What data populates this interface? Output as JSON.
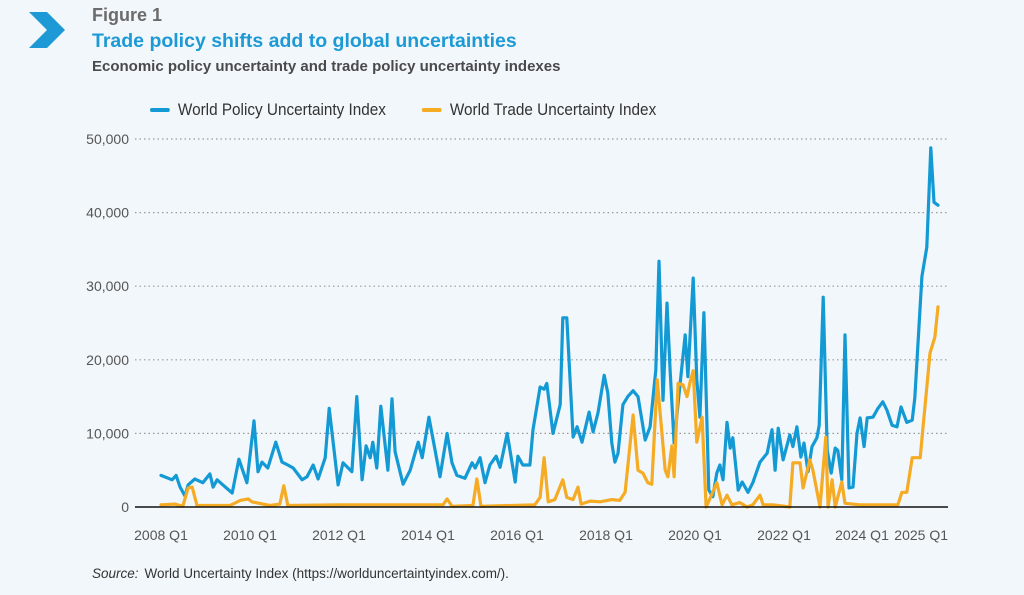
{
  "header": {
    "figure_label": "Figure 1",
    "title": "Trade policy shifts add to global uncertainties",
    "subtitle": "Economic policy uncertainty and trade policy uncertainty indexes",
    "logo_icon": "chevron-right-icon"
  },
  "source": {
    "label": "Source:",
    "text": "World Uncertainty Index (https://worlduncertaintyindex.com/)."
  },
  "colors": {
    "accent": "#1d9ad6",
    "policy": "#139ad4",
    "trade": "#f5ab23",
    "axis": "#111111",
    "grid": "#9a9a9a"
  },
  "chart_data": {
    "type": "line",
    "title": "Trade policy shifts add to global uncertainties",
    "subtitle": "Economic policy uncertainty and trade policy uncertainty indexes",
    "xlabel": "",
    "ylabel": "",
    "x_unit": "year",
    "xlim": [
      2008.0,
      2025.5
    ],
    "ylim": [
      0,
      50000
    ],
    "grid": "horizontal-dotted",
    "legend_position": "top",
    "x_ticks": [
      {
        "x": 2008.0,
        "label": "2008 Q1"
      },
      {
        "x": 2010.0,
        "label": "2010 Q1"
      },
      {
        "x": 2012.0,
        "label": "2012 Q1"
      },
      {
        "x": 2014.0,
        "label": "2014 Q1"
      },
      {
        "x": 2016.0,
        "label": "2016 Q1"
      },
      {
        "x": 2018.0,
        "label": "2018 Q1"
      },
      {
        "x": 2020.0,
        "label": "2020 Q1"
      },
      {
        "x": 2022.0,
        "label": "2022 Q1"
      },
      {
        "x": 2024.0,
        "label": "2024 Q1"
      },
      {
        "x": 2025.0,
        "label": "2025 Q1"
      }
    ],
    "y_ticks": [
      {
        "y": 0,
        "label": "0"
      },
      {
        "y": 10000,
        "label": "10,000"
      },
      {
        "y": 20000,
        "label": "20,000"
      },
      {
        "y": 30000,
        "label": "30,000"
      },
      {
        "y": 40000,
        "label": "40,000"
      },
      {
        "y": 50000,
        "label": "50,000"
      }
    ],
    "series": [
      {
        "name": "World Policy Uncertainty Index",
        "color": "#139ad4",
        "points": [
          [
            2008.0,
            4300
          ],
          [
            2008.25,
            3700
          ],
          [
            2008.34,
            4300
          ],
          [
            2008.43,
            2700
          ],
          [
            2008.54,
            1500
          ],
          [
            2008.61,
            3000
          ],
          [
            2008.76,
            3800
          ],
          [
            2008.94,
            3300
          ],
          [
            2009.1,
            4500
          ],
          [
            2009.17,
            2700
          ],
          [
            2009.26,
            3700
          ],
          [
            2009.39,
            3000
          ],
          [
            2009.6,
            1900
          ],
          [
            2009.75,
            6500
          ],
          [
            2009.93,
            3300
          ],
          [
            2010.09,
            11700
          ],
          [
            2010.18,
            4800
          ],
          [
            2010.27,
            6100
          ],
          [
            2010.4,
            5300
          ],
          [
            2010.58,
            8800
          ],
          [
            2010.72,
            6100
          ],
          [
            2010.85,
            5700
          ],
          [
            2010.97,
            5300
          ],
          [
            2011.17,
            3700
          ],
          [
            2011.28,
            4100
          ],
          [
            2011.42,
            5700
          ],
          [
            2011.53,
            3800
          ],
          [
            2011.69,
            6700
          ],
          [
            2011.78,
            13400
          ],
          [
            2011.98,
            3000
          ],
          [
            2012.09,
            6000
          ],
          [
            2012.29,
            4800
          ],
          [
            2012.4,
            15000
          ],
          [
            2012.52,
            3700
          ],
          [
            2012.61,
            8300
          ],
          [
            2012.7,
            6700
          ],
          [
            2012.76,
            8800
          ],
          [
            2012.85,
            5300
          ],
          [
            2012.94,
            13700
          ],
          [
            2013.1,
            5000
          ],
          [
            2013.19,
            14700
          ],
          [
            2013.26,
            7500
          ],
          [
            2013.44,
            3100
          ],
          [
            2013.6,
            5000
          ],
          [
            2013.78,
            8800
          ],
          [
            2013.87,
            6700
          ],
          [
            2014.02,
            12200
          ],
          [
            2014.16,
            7700
          ],
          [
            2014.27,
            4100
          ],
          [
            2014.43,
            10000
          ],
          [
            2014.54,
            6000
          ],
          [
            2014.65,
            4300
          ],
          [
            2014.83,
            3900
          ],
          [
            2014.99,
            6000
          ],
          [
            2015.06,
            5300
          ],
          [
            2015.17,
            6700
          ],
          [
            2015.28,
            3300
          ],
          [
            2015.39,
            5700
          ],
          [
            2015.53,
            6900
          ],
          [
            2015.62,
            5400
          ],
          [
            2015.78,
            10000
          ],
          [
            2015.96,
            3400
          ],
          [
            2016.02,
            6900
          ],
          [
            2016.13,
            5700
          ],
          [
            2016.29,
            5700
          ],
          [
            2016.36,
            10500
          ],
          [
            2016.52,
            16300
          ],
          [
            2016.61,
            16000
          ],
          [
            2016.67,
            16800
          ],
          [
            2016.81,
            10000
          ],
          [
            2016.97,
            13900
          ],
          [
            2017.03,
            25700
          ],
          [
            2017.12,
            25700
          ],
          [
            2017.26,
            9500
          ],
          [
            2017.35,
            10900
          ],
          [
            2017.46,
            8800
          ],
          [
            2017.62,
            12900
          ],
          [
            2017.71,
            10200
          ],
          [
            2017.82,
            12800
          ],
          [
            2017.96,
            17900
          ],
          [
            2018.04,
            15500
          ],
          [
            2018.13,
            8700
          ],
          [
            2018.2,
            6100
          ],
          [
            2018.27,
            7300
          ],
          [
            2018.38,
            13900
          ],
          [
            2018.49,
            15000
          ],
          [
            2018.61,
            15800
          ],
          [
            2018.72,
            15000
          ],
          [
            2018.88,
            9100
          ],
          [
            2018.99,
            10900
          ],
          [
            2019.12,
            18600
          ],
          [
            2019.19,
            33400
          ],
          [
            2019.28,
            14500
          ],
          [
            2019.37,
            27700
          ],
          [
            2019.44,
            18600
          ],
          [
            2019.53,
            8700
          ],
          [
            2019.62,
            14100
          ],
          [
            2019.78,
            23400
          ],
          [
            2019.84,
            17700
          ],
          [
            2019.96,
            31100
          ],
          [
            2020.04,
            17300
          ],
          [
            2020.11,
            12200
          ],
          [
            2020.2,
            26400
          ],
          [
            2020.31,
            2300
          ],
          [
            2020.4,
            1400
          ],
          [
            2020.49,
            4600
          ],
          [
            2020.56,
            5700
          ],
          [
            2020.63,
            3700
          ],
          [
            2020.72,
            11500
          ],
          [
            2020.79,
            8000
          ],
          [
            2020.85,
            9400
          ],
          [
            2020.97,
            2300
          ],
          [
            2021.06,
            3400
          ],
          [
            2021.19,
            2000
          ],
          [
            2021.3,
            3300
          ],
          [
            2021.46,
            6100
          ],
          [
            2021.62,
            7300
          ],
          [
            2021.73,
            10500
          ],
          [
            2021.8,
            5000
          ],
          [
            2021.87,
            10700
          ],
          [
            2021.98,
            6400
          ],
          [
            2022.13,
            9800
          ],
          [
            2022.2,
            8200
          ],
          [
            2022.29,
            10900
          ],
          [
            2022.38,
            6800
          ],
          [
            2022.45,
            8700
          ],
          [
            2022.54,
            4800
          ],
          [
            2022.63,
            8200
          ],
          [
            2022.74,
            9400
          ],
          [
            2022.79,
            11100
          ],
          [
            2022.88,
            28500
          ],
          [
            2022.97,
            7700
          ],
          [
            2023.06,
            4600
          ],
          [
            2023.15,
            8000
          ],
          [
            2023.21,
            7700
          ],
          [
            2023.3,
            3700
          ],
          [
            2023.37,
            23400
          ],
          [
            2023.46,
            2600
          ],
          [
            2023.55,
            2700
          ],
          [
            2023.64,
            10000
          ],
          [
            2023.71,
            12100
          ],
          [
            2023.8,
            8200
          ],
          [
            2023.87,
            12100
          ],
          [
            2024.0,
            12200
          ],
          [
            2024.11,
            13400
          ],
          [
            2024.22,
            14300
          ],
          [
            2024.31,
            13200
          ],
          [
            2024.43,
            11100
          ],
          [
            2024.54,
            10900
          ],
          [
            2024.63,
            13600
          ],
          [
            2024.76,
            11500
          ],
          [
            2024.88,
            11800
          ],
          [
            2024.94,
            14800
          ],
          [
            2025.1,
            31300
          ],
          [
            2025.21,
            35300
          ],
          [
            2025.3,
            48800
          ],
          [
            2025.37,
            41400
          ],
          [
            2025.46,
            41000
          ]
        ]
      },
      {
        "name": "World Trade Uncertainty Index",
        "color": "#f5ab23",
        "points": [
          [
            2008.0,
            300
          ],
          [
            2008.31,
            400
          ],
          [
            2008.49,
            100
          ],
          [
            2008.61,
            2600
          ],
          [
            2008.7,
            2700
          ],
          [
            2008.81,
            200
          ],
          [
            2009.55,
            200
          ],
          [
            2009.78,
            900
          ],
          [
            2009.96,
            1100
          ],
          [
            2010.04,
            700
          ],
          [
            2010.45,
            200
          ],
          [
            2010.67,
            400
          ],
          [
            2010.76,
            2900
          ],
          [
            2010.85,
            200
          ],
          [
            2012.02,
            300
          ],
          [
            2013.37,
            300
          ],
          [
            2014.34,
            300
          ],
          [
            2014.43,
            1100
          ],
          [
            2014.54,
            100
          ],
          [
            2015.01,
            200
          ],
          [
            2015.1,
            3800
          ],
          [
            2015.19,
            100
          ],
          [
            2016.4,
            300
          ],
          [
            2016.52,
            1300
          ],
          [
            2016.61,
            6700
          ],
          [
            2016.7,
            700
          ],
          [
            2016.85,
            1000
          ],
          [
            2017.03,
            3700
          ],
          [
            2017.12,
            1300
          ],
          [
            2017.26,
            1000
          ],
          [
            2017.37,
            2700
          ],
          [
            2017.44,
            400
          ],
          [
            2017.64,
            800
          ],
          [
            2017.87,
            700
          ],
          [
            2018.13,
            1000
          ],
          [
            2018.31,
            900
          ],
          [
            2018.43,
            2000
          ],
          [
            2018.61,
            12500
          ],
          [
            2018.72,
            5000
          ],
          [
            2018.83,
            4600
          ],
          [
            2018.94,
            3300
          ],
          [
            2019.03,
            3100
          ],
          [
            2019.15,
            17300
          ],
          [
            2019.33,
            5000
          ],
          [
            2019.39,
            4100
          ],
          [
            2019.48,
            8300
          ],
          [
            2019.53,
            4100
          ],
          [
            2019.62,
            16800
          ],
          [
            2019.73,
            16600
          ],
          [
            2019.82,
            15000
          ],
          [
            2019.89,
            17000
          ],
          [
            2019.96,
            18500
          ],
          [
            2020.04,
            8800
          ],
          [
            2020.16,
            12200
          ],
          [
            2020.25,
            0
          ],
          [
            2020.34,
            1200
          ],
          [
            2020.49,
            3300
          ],
          [
            2020.61,
            300
          ],
          [
            2020.72,
            1600
          ],
          [
            2020.83,
            300
          ],
          [
            2021.01,
            600
          ],
          [
            2021.17,
            0
          ],
          [
            2021.3,
            300
          ],
          [
            2021.46,
            1600
          ],
          [
            2021.53,
            300
          ],
          [
            2021.75,
            300
          ],
          [
            2022.13,
            0
          ],
          [
            2022.2,
            6000
          ],
          [
            2022.36,
            6000
          ],
          [
            2022.43,
            2600
          ],
          [
            2022.58,
            6400
          ],
          [
            2022.65,
            5000
          ],
          [
            2022.81,
            0
          ],
          [
            2022.94,
            9500
          ],
          [
            2022.99,
            0
          ],
          [
            2023.08,
            3700
          ],
          [
            2023.15,
            0
          ],
          [
            2023.3,
            3400
          ],
          [
            2023.37,
            500
          ],
          [
            2023.71,
            300
          ],
          [
            2024.38,
            300
          ],
          [
            2024.56,
            300
          ],
          [
            2024.65,
            2000
          ],
          [
            2024.76,
            2000
          ],
          [
            2024.88,
            6700
          ],
          [
            2025.06,
            6700
          ],
          [
            2025.12,
            10500
          ],
          [
            2025.28,
            20900
          ],
          [
            2025.39,
            23100
          ],
          [
            2025.46,
            27200
          ]
        ]
      }
    ]
  }
}
